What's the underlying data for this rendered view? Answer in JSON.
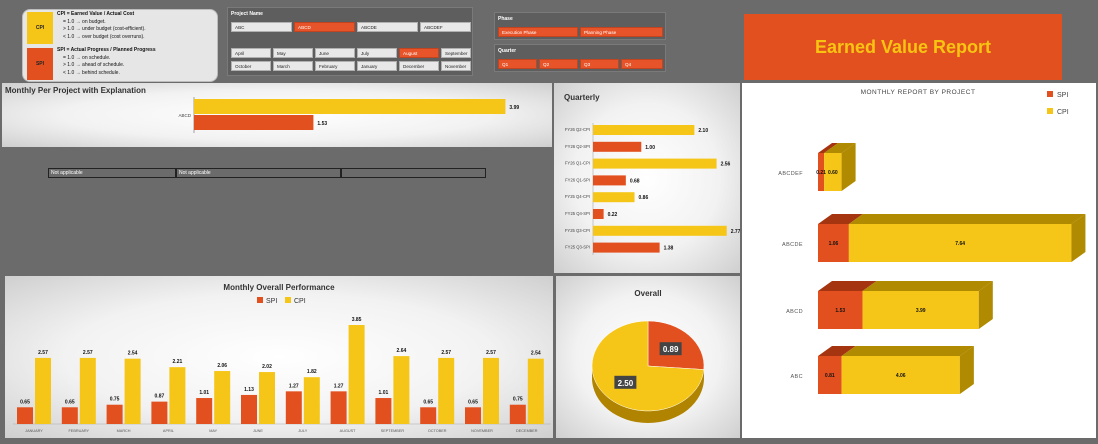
{
  "legend": {
    "cpi": {
      "swatch_label": "CPI",
      "color": "#f5c518",
      "lines": [
        "CPI = Earned Value / Actual Cost",
        "= 1.0 → on budget.",
        "> 1.0 → under budget (cost-efficient).",
        "< 1.0 → over budget (cost overruns)."
      ]
    },
    "spi": {
      "swatch_label": "SPI",
      "color": "#e3501f",
      "lines": [
        "SPI = Actual Progress / Planned Progress",
        "= 1.0 → on schedule.",
        "> 1.0 → ahead of schedule.",
        "< 1.0 → behind schedule."
      ]
    }
  },
  "slicers": {
    "project": {
      "title": "Project Name",
      "items": [
        "ABC",
        "ABCD",
        "ABCDE",
        "ABCDEF"
      ],
      "selected": "ABCD"
    },
    "month": {
      "items": [
        "April",
        "May",
        "June",
        "July",
        "August",
        "September",
        "October",
        "March",
        "February",
        "January",
        "December",
        "November"
      ],
      "selected": "August"
    },
    "phase": {
      "title": "Phase",
      "items": [
        "Execution Phase",
        "Planning Phase"
      ]
    },
    "quarter": {
      "title": "Quarter",
      "items": [
        "Q1",
        "Q2",
        "Q3",
        "Q4"
      ]
    }
  },
  "report_title": "Earned Value Report",
  "colors": {
    "spi": "#e3501f",
    "cpi": "#f5c518",
    "slicer_selected": "#e8542a"
  },
  "explanation": {
    "cells": [
      "Not applicable",
      "Not applicable",
      ""
    ]
  },
  "chart_data": [
    {
      "id": "monthly_per_project",
      "type": "bar",
      "orientation": "horizontal",
      "title": "Monthly Per Project with Explanation",
      "categories": [
        "ABCD"
      ],
      "series": [
        {
          "name": "CPI",
          "values": [
            3.99
          ]
        },
        {
          "name": "SPI",
          "values": [
            1.53
          ]
        }
      ],
      "value_labels": [
        "3.99",
        "1.53"
      ],
      "xlim": [
        0,
        4.1
      ]
    },
    {
      "id": "quarterly",
      "type": "bar",
      "orientation": "horizontal",
      "title": "Quarterly",
      "categories": [
        "FY26 Q2-CPI",
        "FY26 Q2-SPI",
        "FY26 Q1-CPI",
        "FY26 Q1-SPI",
        "FY25 Q4-CPI",
        "FY25 Q4-SPI",
        "FY25 Q3-CPI",
        "FY25 Q3-SPI"
      ],
      "values": [
        2.1,
        1.0,
        2.56,
        0.68,
        0.86,
        0.22,
        2.77,
        1.38
      ],
      "value_labels": [
        "2.10",
        "1.00",
        "2.56",
        "0.68",
        "0.86",
        "0.22",
        "2.77",
        "1.38"
      ],
      "xlim": [
        0,
        2.9
      ]
    },
    {
      "id": "monthly_overall",
      "type": "bar",
      "title": "Monthly Overall Performance",
      "legend": "top-center",
      "categories": [
        "JANUARY",
        "FEBRUARY",
        "MARCH",
        "APRIL",
        "MAY",
        "JUNE",
        "JULY",
        "AUGUST",
        "SEPTEMBER",
        "OCTOBER",
        "NOVEMBER",
        "DECEMBER"
      ],
      "series": [
        {
          "name": "SPI",
          "values": [
            0.65,
            0.65,
            0.75,
            0.87,
            1.01,
            1.13,
            1.27,
            1.27,
            1.01,
            0.65,
            0.65,
            0.75
          ]
        },
        {
          "name": "CPI",
          "values": [
            2.57,
            2.57,
            2.54,
            2.21,
            2.06,
            2.02,
            1.82,
            3.85,
            2.64,
            2.57,
            2.57,
            2.54
          ]
        }
      ],
      "spi_labels": [
        "0.65",
        "0.65",
        "0.75",
        "0.87",
        "1.01",
        "1.13",
        "1.27",
        "1.27",
        "1.01",
        "0.65",
        "0.65",
        "0.75"
      ],
      "cpi_labels": [
        "2.57",
        "2.57",
        "2.54",
        "2.21",
        "2.06",
        "2.02",
        "1.82",
        "3.85",
        "2.64",
        "2.57",
        "2.57",
        "2.54"
      ],
      "ylim": [
        0,
        4.2
      ]
    },
    {
      "id": "overall",
      "type": "pie",
      "title": "Overall",
      "slices": [
        {
          "name": "SPI",
          "value": 0.89,
          "label": "0.89"
        },
        {
          "name": "CPI",
          "value": 2.5,
          "label": "2.50"
        }
      ]
    },
    {
      "id": "monthly_report_by_project",
      "type": "bar",
      "orientation": "horizontal",
      "stacked": true,
      "title": "MONTHLY REPORT BY PROJECT",
      "legend": "top-right",
      "categories": [
        "ABCDEF",
        "ABCDE",
        "ABCD",
        "ABC"
      ],
      "series": [
        {
          "name": "SPI",
          "values": [
            0.21,
            1.06,
            1.53,
            0.81
          ]
        },
        {
          "name": "CPI",
          "values": [
            0.6,
            7.64,
            3.99,
            4.06
          ]
        }
      ],
      "spi_labels": [
        "0.21",
        "1.06",
        "1.53",
        "0.81"
      ],
      "cpi_labels": [
        "0.60",
        "7.64",
        "3.99",
        "4.06"
      ],
      "xlim": [
        0,
        9.2
      ]
    }
  ]
}
